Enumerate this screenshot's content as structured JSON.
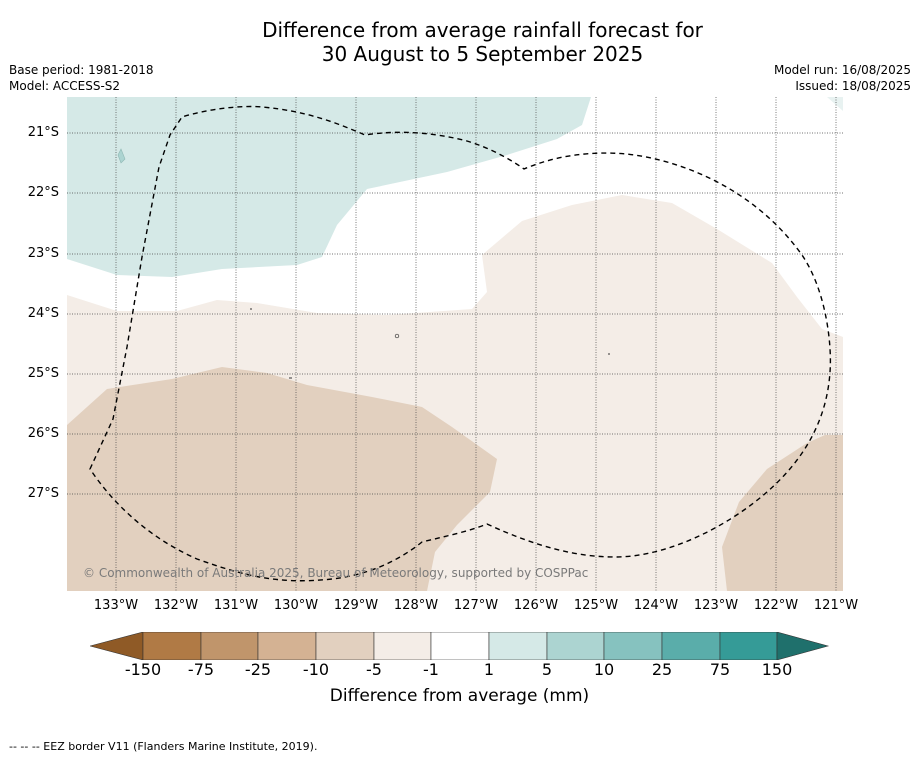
{
  "title": {
    "line1": "Difference from average rainfall forecast for",
    "line2": "30 August to 5 September 2025"
  },
  "meta_left": {
    "base_period": "Base period: 1981-2018",
    "model": "Model: ACCESS-S2"
  },
  "meta_right": {
    "model_run": "Model run: 16/08/2025",
    "issued": "Issued: 18/08/2025"
  },
  "map": {
    "lat_labels": [
      "21°S",
      "22°S",
      "23°S",
      "24°S",
      "25°S",
      "26°S",
      "27°S"
    ],
    "lon_labels": [
      "133°W",
      "132°W",
      "131°W",
      "130°W",
      "129°W",
      "128°W",
      "127°W",
      "126°W",
      "125°W",
      "124°W",
      "123°W",
      "122°W",
      "121°W"
    ],
    "copyright": "© Commonwealth of Australia 2025, Bureau of Meteorology, supported by COSPPac",
    "colors": {
      "wet_1_5": "#d5e9e7",
      "dry_1_5": "#f4ede7",
      "dry_5_10": "#e2d0bf",
      "neutral": "#ffffff"
    }
  },
  "colorbar": {
    "labels": [
      "-150",
      "-75",
      "-25",
      "-10",
      "-5",
      "-1",
      "1",
      "5",
      "10",
      "25",
      "75",
      "150"
    ],
    "colors": [
      "#8f5a26",
      "#b07a45",
      "#c0956b",
      "#d4b293",
      "#e2d0bf",
      "#f4ede7",
      "#ffffff",
      "#d5e9e7",
      "#acd4d1",
      "#86c2bf",
      "#5aadaa",
      "#359b97",
      "#1f706c"
    ],
    "title": "Difference from average (mm)"
  },
  "footer": "--  --  -- EEZ border V11 (Flanders Marine Institute, 2019)."
}
